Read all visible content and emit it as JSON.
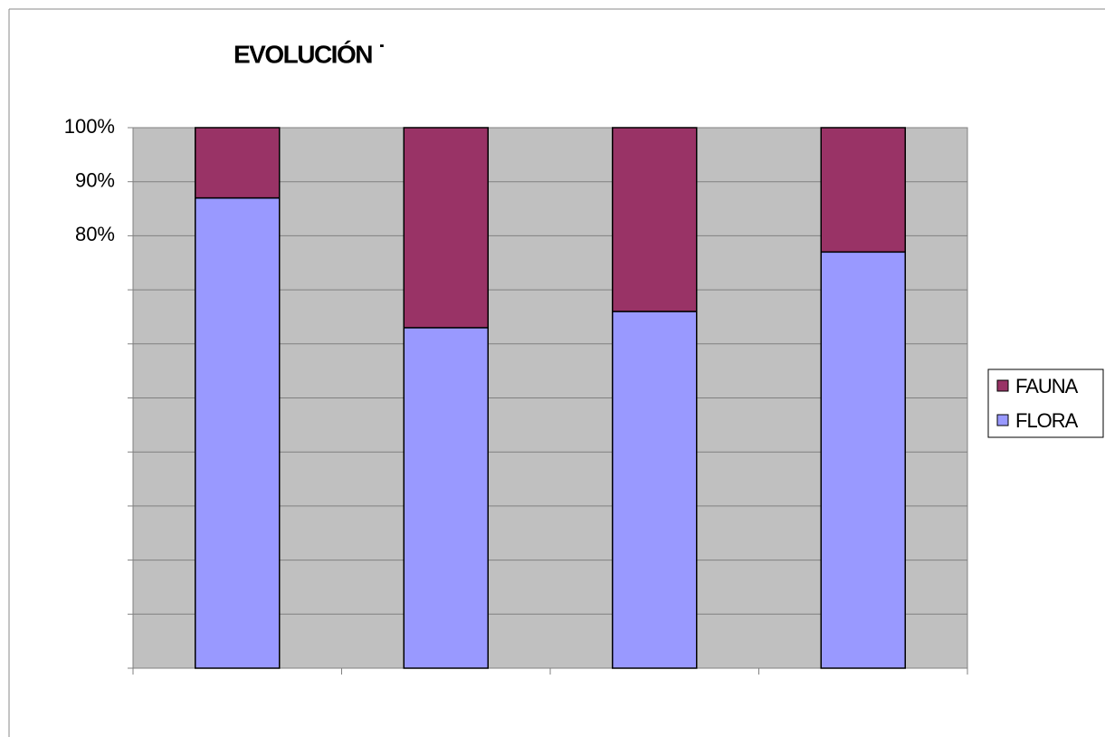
{
  "chart_data": {
    "type": "stacked_bar",
    "title": "EVOLUCIÓN ˙",
    "categories": [
      null,
      null,
      null,
      null
    ],
    "series": [
      {
        "name": "FLORA",
        "color": "#9999ff",
        "values": [
          87,
          63,
          66,
          77
        ]
      },
      {
        "name": "FAUNA",
        "color": "#993366",
        "values": [
          13,
          37,
          34,
          23
        ]
      }
    ],
    "ylim": [
      0,
      100
    ],
    "yticks": [
      {
        "value": 0,
        "label": null
      },
      {
        "value": 10,
        "label": null
      },
      {
        "value": 20,
        "label": null
      },
      {
        "value": 30,
        "label": null
      },
      {
        "value": 40,
        "label": null
      },
      {
        "value": 50,
        "label": null
      },
      {
        "value": 60,
        "label": null
      },
      {
        "value": 70,
        "label": null
      },
      {
        "value": 80,
        "label": "80%"
      },
      {
        "value": 90,
        "label": "90%"
      },
      {
        "value": 100,
        "label": "100%"
      }
    ],
    "grid": true,
    "legend": "right"
  }
}
